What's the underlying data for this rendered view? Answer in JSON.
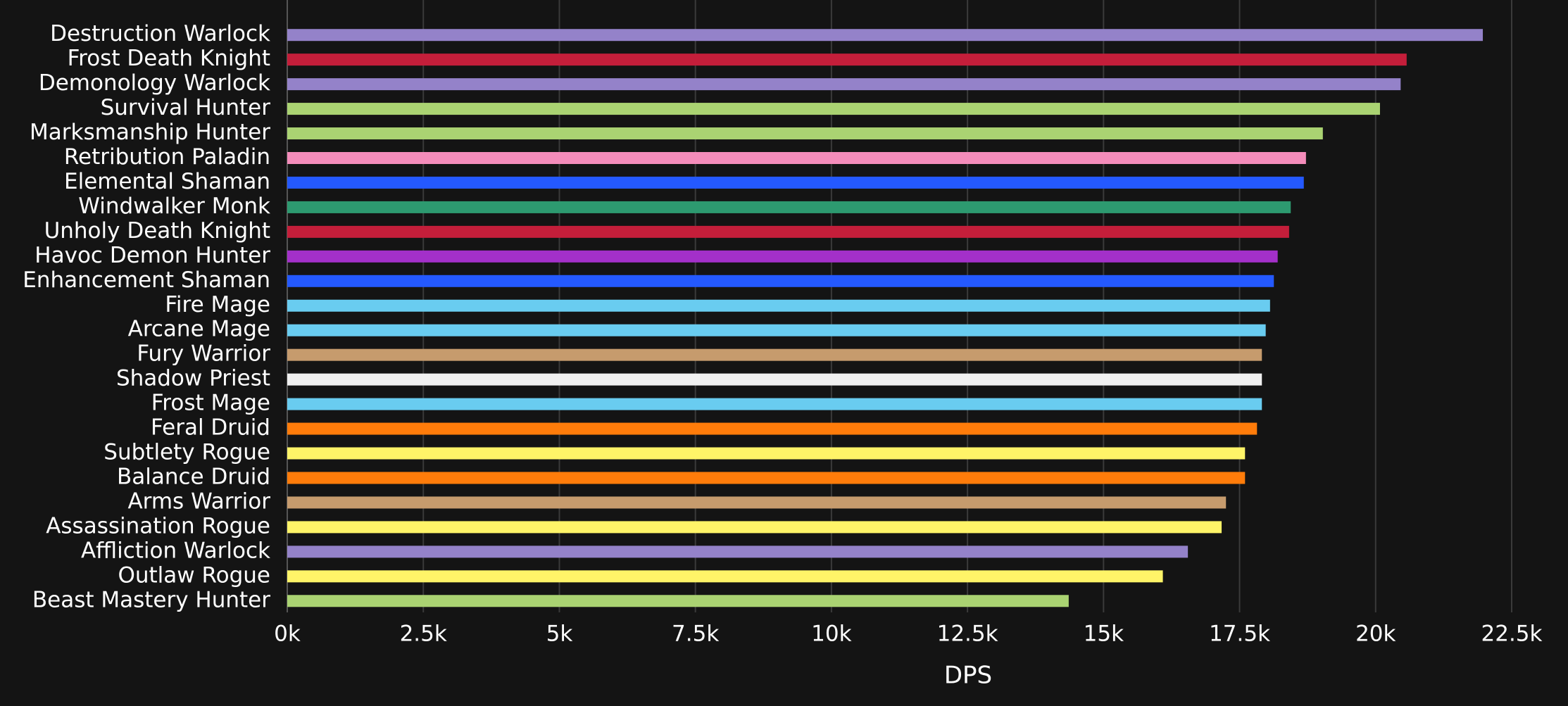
{
  "chart_data": {
    "type": "bar",
    "orientation": "horizontal",
    "x_label": "DPS",
    "categories": [
      "Destruction Warlock",
      "Frost Death Knight",
      "Demonology Warlock",
      "Survival Hunter",
      "Marksmanship Hunter",
      "Retribution Paladin",
      "Elemental Shaman",
      "Windwalker Monk",
      "Unholy Death Knight",
      "Havoc Demon Hunter",
      "Enhancement Shaman",
      "Fire Mage",
      "Arcane Mage",
      "Fury Warrior",
      "Shadow Priest",
      "Frost Mage",
      "Feral Druid",
      "Subtlety Rogue",
      "Balance Druid",
      "Arms Warrior",
      "Assassination Rogue",
      "Affliction Warlock",
      "Outlaw Rogue",
      "Beast Mastery Hunter"
    ],
    "values": [
      21970,
      20570,
      20460,
      20080,
      19030,
      18720,
      18680,
      18440,
      18410,
      18200,
      18130,
      18060,
      17980,
      17910,
      17910,
      17910,
      17820,
      17600,
      17600,
      17250,
      17170,
      16550,
      16090,
      14360
    ],
    "colors": [
      "#9482c9",
      "#c41e3a",
      "#9482c9",
      "#aad372",
      "#aad372",
      "#f48cba",
      "#2459ff",
      "#2d9a70",
      "#c41e3a",
      "#a330c9",
      "#2459ff",
      "#69ccf0",
      "#69ccf0",
      "#c69b6d",
      "#f0f0f0",
      "#69ccf0",
      "#ff7c0a",
      "#fff468",
      "#ff7c0a",
      "#c69b6d",
      "#fff468",
      "#9482c9",
      "#fff468",
      "#aad372"
    ],
    "xlim": [
      0,
      22500
    ],
    "xticks": [
      {
        "value": 0,
        "label": "0k"
      },
      {
        "value": 2500,
        "label": "2.5k"
      },
      {
        "value": 5000,
        "label": "5k"
      },
      {
        "value": 7500,
        "label": "7.5k"
      },
      {
        "value": 10000,
        "label": "10k"
      },
      {
        "value": 12500,
        "label": "12.5k"
      },
      {
        "value": 15000,
        "label": "15k"
      },
      {
        "value": 17500,
        "label": "17.5k"
      },
      {
        "value": 20000,
        "label": "20k"
      },
      {
        "value": 22500,
        "label": "22.5k"
      }
    ],
    "grid": true
  }
}
